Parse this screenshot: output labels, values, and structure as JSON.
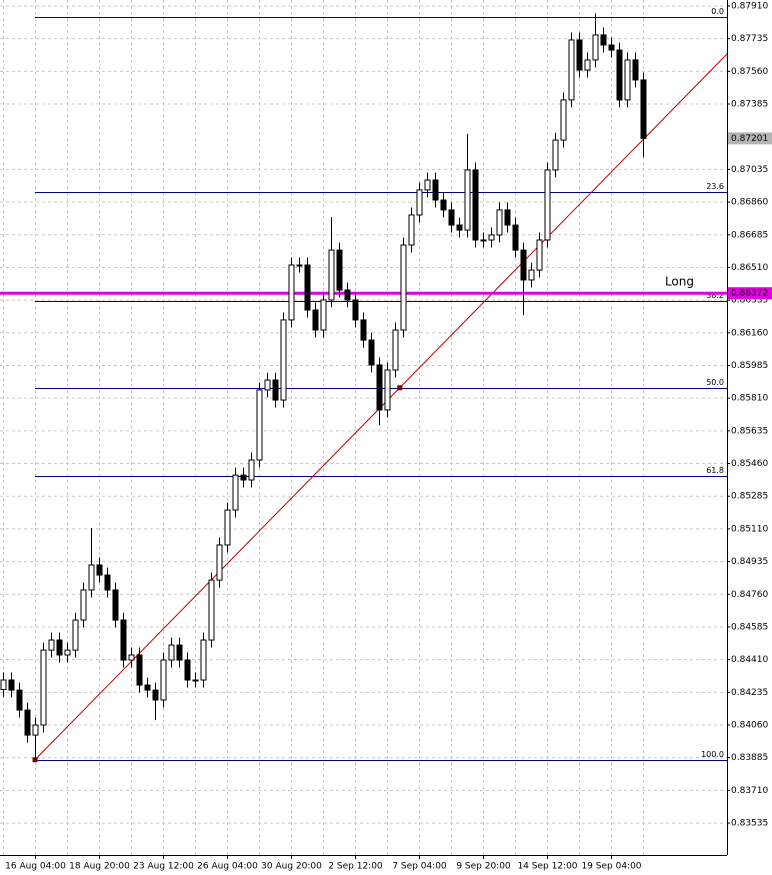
{
  "chart_data": {
    "type": "candlestick",
    "ylim": [
      0.83364,
      0.87942
    ],
    "yticks": [
      {
        "value": 0.8791,
        "label": "0.87910"
      },
      {
        "value": 0.87735,
        "label": "0.87735"
      },
      {
        "value": 0.8756,
        "label": "0.87560"
      },
      {
        "value": 0.87385,
        "label": "0.87385"
      },
      {
        "value": 0.87035,
        "label": "0.87035"
      },
      {
        "value": 0.8686,
        "label": "0.86860"
      },
      {
        "value": 0.86685,
        "label": "0.86685"
      },
      {
        "value": 0.8651,
        "label": "0.86510"
      },
      {
        "value": 0.86335,
        "label": "0.86335"
      },
      {
        "value": 0.8616,
        "label": "0.86160"
      },
      {
        "value": 0.85985,
        "label": "0.85985"
      },
      {
        "value": 0.8581,
        "label": "0.85810"
      },
      {
        "value": 0.85635,
        "label": "0.85635"
      },
      {
        "value": 0.8546,
        "label": "0.85460"
      },
      {
        "value": 0.85285,
        "label": "0.85285"
      },
      {
        "value": 0.8511,
        "label": "0.85110"
      },
      {
        "value": 0.84935,
        "label": "0.84935"
      },
      {
        "value": 0.8476,
        "label": "0.84760"
      },
      {
        "value": 0.84585,
        "label": "0.84585"
      },
      {
        "value": 0.8441,
        "label": "0.84410"
      },
      {
        "value": 0.84235,
        "label": "0.84235"
      },
      {
        "value": 0.8406,
        "label": "0.84060"
      },
      {
        "value": 0.83885,
        "label": "0.83885"
      },
      {
        "value": 0.8371,
        "label": "0.83710"
      },
      {
        "value": 0.83535,
        "label": "0.83535"
      }
    ],
    "categories": [
      null,
      null,
      null,
      null,
      "16 Aug 04:00",
      null,
      null,
      null,
      null,
      null,
      null,
      null,
      "18 Aug 20:00",
      null,
      null,
      null,
      null,
      null,
      null,
      null,
      "23 Aug 12:00",
      null,
      null,
      null,
      null,
      null,
      null,
      null,
      "26 Aug 04:00",
      null,
      null,
      null,
      null,
      null,
      null,
      null,
      "30 Aug 20:00",
      null,
      null,
      null,
      null,
      null,
      null,
      null,
      "2 Sep 12:00",
      null,
      null,
      null,
      null,
      null,
      null,
      null,
      "7 Sep 04:00",
      null,
      null,
      null,
      null,
      null,
      null,
      null,
      "9 Sep 20:00",
      null,
      null,
      null,
      null,
      null,
      null,
      null,
      "14 Sep 12:00",
      null,
      null,
      null,
      null,
      null,
      null,
      null,
      "19 Sep 04:00",
      null,
      null,
      null,
      null
    ],
    "open": [
      0.8425,
      0.84301,
      0.84247,
      0.8414,
      0.84006,
      0.8406,
      0.84461,
      0.84515,
      0.84435,
      0.84461,
      0.84622,
      0.84783,
      0.84917,
      0.84863,
      0.84783,
      0.84622,
      0.84408,
      0.84435,
      0.84274,
      0.84247,
      0.84194,
      0.84408,
      0.84488,
      0.84408,
      0.84301,
      0.84301,
      0.84515,
      0.84836,
      0.85024,
      0.85211,
      0.85398,
      0.85372,
      0.85479,
      0.85854,
      0.85907,
      0.858,
      0.86229,
      0.86523,
      0.86523,
      0.86282,
      0.86175,
      0.86336,
      0.86603,
      0.86389,
      0.86336,
      0.86229,
      0.86121,
      0.85988,
      0.85747,
      0.85961,
      0.86175,
      0.8663,
      0.86791,
      0.86925,
      0.86978,
      0.86871,
      0.86818,
      0.86737,
      0.8671,
      0.87032,
      0.86657,
      0.86657,
      0.86684,
      0.86818,
      0.86737,
      0.86603,
      0.86443,
      0.86496,
      0.86657,
      0.87032,
      0.87192,
      0.87407,
      0.87728,
      0.87567,
      0.87621,
      0.87755,
      0.87701,
      0.87674,
      0.87407,
      0.87621,
      0.87514
    ],
    "high": [
      0.84341,
      0.84341,
      0.84287,
      0.8418,
      0.841,
      0.84501,
      0.84555,
      0.84555,
      0.84501,
      0.84662,
      0.84823,
      0.85115,
      0.84957,
      0.84903,
      0.84823,
      0.84662,
      0.84475,
      0.84475,
      0.84314,
      0.84287,
      0.84448,
      0.84528,
      0.84528,
      0.84448,
      0.84341,
      0.84555,
      0.84876,
      0.85064,
      0.85251,
      0.85438,
      0.85438,
      0.85519,
      0.85894,
      0.85947,
      0.85947,
      0.86269,
      0.86563,
      0.86563,
      0.86563,
      0.86322,
      0.86376,
      0.8678,
      0.86643,
      0.86429,
      0.86376,
      0.86269,
      0.86161,
      0.86028,
      0.86001,
      0.86215,
      0.8667,
      0.86831,
      0.86965,
      0.87018,
      0.87018,
      0.86911,
      0.86858,
      0.86777,
      0.87225,
      0.87072,
      0.86697,
      0.86724,
      0.86858,
      0.86858,
      0.86777,
      0.86643,
      0.86536,
      0.86697,
      0.87072,
      0.87232,
      0.87447,
      0.87768,
      0.87768,
      0.87661,
      0.8787,
      0.87795,
      0.87741,
      0.87714,
      0.87661,
      0.87661,
      0.87554
    ],
    "low": [
      0.8421,
      0.84207,
      0.841,
      0.83966,
      0.83874,
      0.8402,
      0.84421,
      0.84395,
      0.84395,
      0.84421,
      0.84582,
      0.84743,
      0.84823,
      0.84743,
      0.84582,
      0.84368,
      0.84368,
      0.84234,
      0.84207,
      0.84086,
      0.84154,
      0.84368,
      0.84368,
      0.84261,
      0.84261,
      0.84261,
      0.84475,
      0.84796,
      0.84984,
      0.85171,
      0.85332,
      0.85332,
      0.85439,
      0.85814,
      0.8576,
      0.8576,
      0.86189,
      0.86483,
      0.86242,
      0.86135,
      0.86135,
      0.86296,
      0.86349,
      0.86296,
      0.86189,
      0.86081,
      0.85948,
      0.85666,
      0.85707,
      0.85921,
      0.86135,
      0.8659,
      0.86751,
      0.86885,
      0.86831,
      0.86778,
      0.86697,
      0.8667,
      0.8667,
      0.86617,
      0.86617,
      0.86617,
      0.86644,
      0.86697,
      0.86563,
      0.86255,
      0.86403,
      0.86456,
      0.86617,
      0.86992,
      0.87152,
      0.87367,
      0.87527,
      0.87527,
      0.87581,
      0.87661,
      0.87634,
      0.87367,
      0.87367,
      0.87474,
      0.871
    ],
    "close": [
      0.84301,
      0.84247,
      0.8414,
      0.84006,
      0.8406,
      0.84461,
      0.84515,
      0.84435,
      0.84461,
      0.84622,
      0.84783,
      0.84917,
      0.84863,
      0.84783,
      0.84622,
      0.84408,
      0.84435,
      0.84274,
      0.84247,
      0.84194,
      0.84408,
      0.84488,
      0.84408,
      0.84301,
      0.84301,
      0.84515,
      0.84836,
      0.85024,
      0.85211,
      0.85398,
      0.85372,
      0.85479,
      0.85854,
      0.85907,
      0.858,
      0.86229,
      0.86523,
      0.86523,
      0.86282,
      0.86175,
      0.86336,
      0.86603,
      0.86389,
      0.86336,
      0.86229,
      0.86121,
      0.85988,
      0.85747,
      0.85961,
      0.86175,
      0.8663,
      0.86791,
      0.86925,
      0.86978,
      0.86871,
      0.86818,
      0.86737,
      0.8671,
      0.87032,
      0.86657,
      0.86657,
      0.86684,
      0.86818,
      0.86737,
      0.86603,
      0.86443,
      0.86496,
      0.86657,
      0.87032,
      0.87192,
      0.87407,
      0.87728,
      0.87567,
      0.87621,
      0.87755,
      0.87701,
      0.87674,
      0.87407,
      0.87621,
      0.87514,
      0.87201
    ],
    "fib_levels": [
      {
        "label": "0.0",
        "price": 0.87851
      },
      {
        "label": "23.6",
        "price": 0.86912
      },
      {
        "label": "38.2",
        "price": 0.86332
      },
      {
        "label": "50.0",
        "price": 0.85862
      },
      {
        "label": "61.8",
        "price": 0.85393
      },
      {
        "label": "100.0",
        "price": 0.83874
      }
    ],
    "fib_color": "#000080",
    "trendline": {
      "x": [
        4,
        49.6
      ],
      "y": [
        0.83874,
        0.85866
      ],
      "color": "#c00000"
    },
    "hline": {
      "name": "Long",
      "value": 0.86372,
      "value_label": "0.86372",
      "color": "#e000e0"
    },
    "current_price": {
      "value": 0.87201,
      "value_label": "0.87201",
      "color": "#b4b4b4"
    },
    "grid": true
  }
}
